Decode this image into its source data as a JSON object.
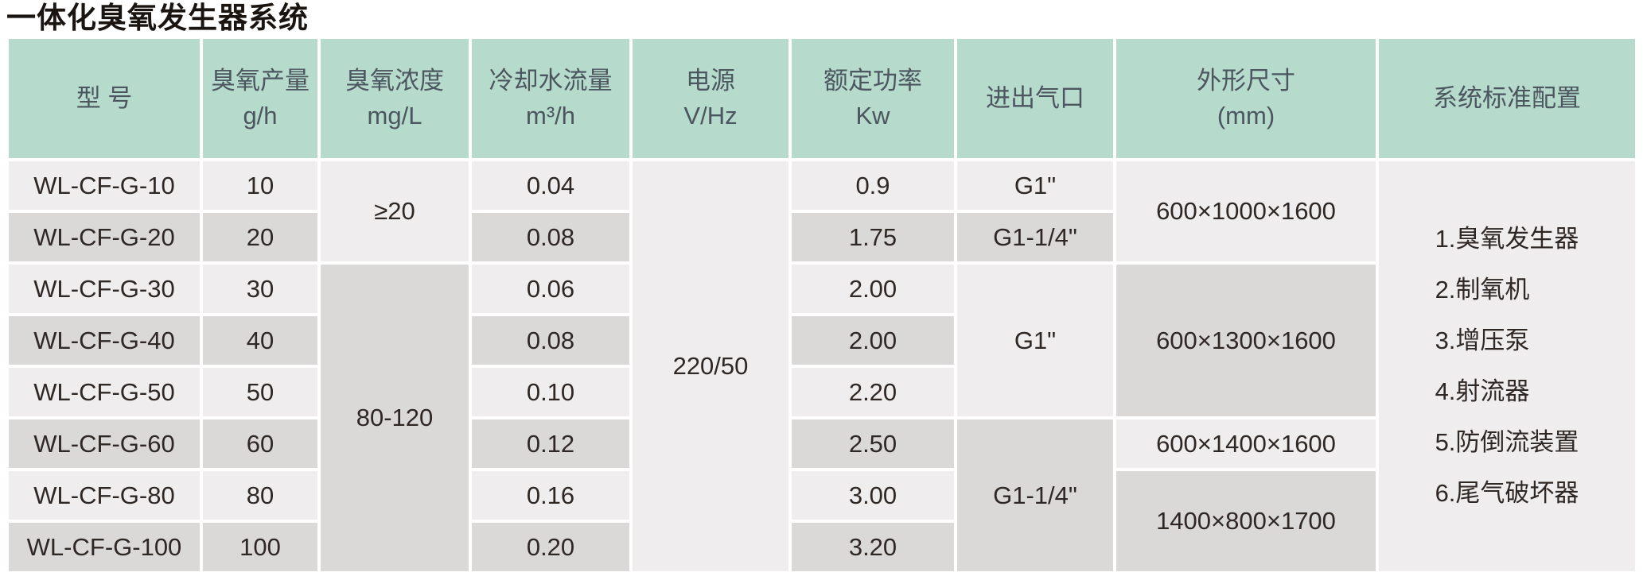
{
  "title": "一体化臭氧发生器系统",
  "colors": {
    "header_bg": "#b6dacb",
    "row_light": "#efedee",
    "row_dark": "#dbd9d8",
    "header_text": "#4b565f",
    "body_text": "#2f2724",
    "title_text": "#1b1511",
    "background": "#ffffff"
  },
  "table": {
    "headers": [
      {
        "line1": "型 号",
        "line2": ""
      },
      {
        "line1": "臭氧产量",
        "line2": "g/h"
      },
      {
        "line1": "臭氧浓度",
        "line2": "mg/L"
      },
      {
        "line1": "冷却水流量",
        "line2": "m³/h"
      },
      {
        "line1": "电源",
        "line2": "V/Hz"
      },
      {
        "line1": "额定功率",
        "line2": "Kw"
      },
      {
        "line1": "进出气口",
        "line2": ""
      },
      {
        "line1": "外形尺寸",
        "line2": "(mm)"
      },
      {
        "line1": "系统标准配置",
        "line2": ""
      }
    ],
    "rows": [
      {
        "model": "WL-CF-G-10",
        "output": "10",
        "flow": "0.04",
        "power": "0.9"
      },
      {
        "model": "WL-CF-G-20",
        "output": "20",
        "flow": "0.08",
        "power": "1.75"
      },
      {
        "model": "WL-CF-G-30",
        "output": "30",
        "flow": "0.06",
        "power": "2.00"
      },
      {
        "model": "WL-CF-G-40",
        "output": "40",
        "flow": "0.08",
        "power": "2.00"
      },
      {
        "model": "WL-CF-G-50",
        "output": "50",
        "flow": "0.10",
        "power": "2.20"
      },
      {
        "model": "WL-CF-G-60",
        "output": "60",
        "flow": "0.12",
        "power": "2.50"
      },
      {
        "model": "WL-CF-G-80",
        "output": "80",
        "flow": "0.16",
        "power": "3.00"
      },
      {
        "model": "WL-CF-G-100",
        "output": "100",
        "flow": "0.20",
        "power": "3.20"
      }
    ],
    "merged": {
      "concentration_rows_1_2": "≥20",
      "concentration_rows_3_8": "80-120",
      "power_supply_all_rows": "220/50",
      "port_row_1": "G1\"",
      "port_row_2": "G1-1/4\"",
      "port_rows_3_5": "G1\"",
      "port_rows_6_8": "G1-1/4\"",
      "dimensions_rows_1_2": "600×1000×1600",
      "dimensions_rows_3_5": "600×1300×1600",
      "dimensions_row_6": "600×1400×1600",
      "dimensions_rows_7_8": "1400×800×1700"
    },
    "config_items": [
      "1.臭氧发生器",
      "2.制氧机",
      "3.增压泵",
      "4.射流器",
      "5.防倒流装置",
      "6.尾气破坏器"
    ]
  }
}
